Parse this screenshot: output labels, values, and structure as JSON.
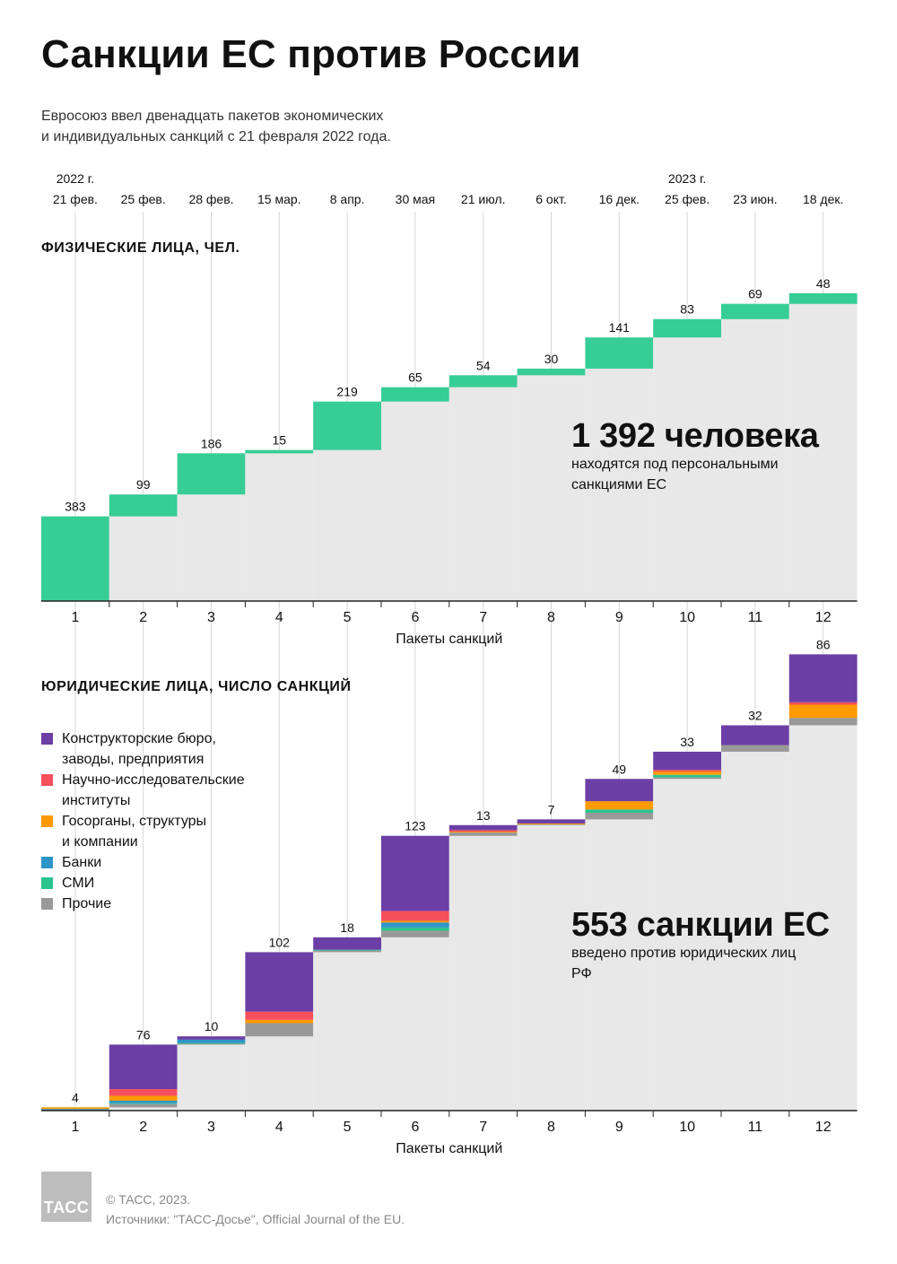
{
  "title": "Санкции ЕС против России",
  "subtitle": "Евросоюз ввел двенадцать пакетов экономических\nи индивидуальных санкций с 21 февраля 2022 года.",
  "timeline": {
    "years": [
      {
        "package": 1,
        "label": "2022 г."
      },
      {
        "package": 10,
        "label": "2023 г."
      }
    ],
    "dates": [
      "21 фев.",
      "25 фев.",
      "28 фев.",
      "15 мар.",
      "8 апр.",
      "30 мая",
      "21 июл.",
      "6 окт.",
      "16 дек.",
      "25 фев.",
      "23 июн.",
      "18 дек."
    ]
  },
  "individuals": {
    "section_title": "ФИЗИЧЕСКИЕ ЛИЦА, ЧЕЛ.",
    "big_number": "1 392 человека",
    "big_note": "находятся под персональными санкциями ЕС"
  },
  "entities": {
    "section_title": "ЮРИДИЧЕСКИЕ ЛИЦА, ЧИСЛО САНКЦИЙ",
    "big_number": "553 санкции ЕС",
    "big_note": "введено против юридических лиц РФ"
  },
  "legend": [
    {
      "label": "Конструкторские бюро,\nзаводы, предприятия",
      "color": "#6b3fa6"
    },
    {
      "label": "Научно-исследовательские\nинституты",
      "color": "#f5505b"
    },
    {
      "label": "Госорганы, структуры\nи компании",
      "color": "#ff9a00"
    },
    {
      "label": "Банки",
      "color": "#2e95c8"
    },
    {
      "label": "СМИ",
      "color": "#2cc48e"
    },
    {
      "label": "Прочие",
      "color": "#999999"
    }
  ],
  "chart_data": [
    {
      "type": "bar",
      "subtype": "waterfall",
      "title": "ФИЗИЧЕСКИЕ ЛИЦА, ЧЕЛ.",
      "xlabel": "Пакеты санкций",
      "categories": [
        "1",
        "2",
        "3",
        "4",
        "5",
        "6",
        "7",
        "8",
        "9",
        "10",
        "11",
        "12"
      ],
      "values": [
        383,
        99,
        186,
        15,
        219,
        65,
        54,
        30,
        141,
        83,
        69,
        48
      ],
      "total": 1392,
      "color": "#37cd97",
      "ylim": [
        0,
        1450
      ]
    },
    {
      "type": "bar",
      "subtype": "stacked-waterfall",
      "title": "ЮРИДИЧЕСКИЕ ЛИЦА, ЧИСЛО САНКЦИЙ",
      "xlabel": "Пакеты санкций",
      "categories": [
        "1",
        "2",
        "3",
        "4",
        "5",
        "6",
        "7",
        "8",
        "9",
        "10",
        "11",
        "12"
      ],
      "totals": [
        4,
        76,
        10,
        102,
        18,
        123,
        13,
        7,
        49,
        33,
        32,
        86
      ],
      "total": 553,
      "series": [
        {
          "name": "Прочие",
          "color": "#999999",
          "values": [
            1,
            4,
            1,
            16,
            2,
            8,
            4,
            1,
            8,
            2,
            8,
            9
          ]
        },
        {
          "name": "СМИ",
          "color": "#2cc48e",
          "values": [
            0,
            1,
            1,
            0,
            1,
            4,
            0,
            0,
            4,
            3,
            0,
            0
          ]
        },
        {
          "name": "Банки",
          "color": "#2e95c8",
          "values": [
            1,
            3,
            4,
            0,
            0,
            6,
            0,
            0,
            0,
            0,
            0,
            0
          ]
        },
        {
          "name": "Госорганы, структуры и компании",
          "color": "#ff9a00",
          "values": [
            2,
            6,
            0,
            4,
            0,
            2,
            1,
            1,
            10,
            4,
            0,
            16
          ]
        },
        {
          "name": "Научно-исследовательские институты",
          "color": "#f5505b",
          "values": [
            0,
            8,
            0,
            10,
            0,
            12,
            2,
            0,
            0,
            2,
            0,
            3
          ]
        },
        {
          "name": "Конструкторские бюро, заводы, предприятия",
          "color": "#6b3fa6",
          "values": [
            0,
            54,
            4,
            72,
            15,
            91,
            6,
            5,
            27,
            22,
            24,
            58
          ]
        }
      ],
      "ylim": [
        0,
        570
      ]
    }
  ],
  "footer": {
    "logo_text": "ТАСС",
    "copyright": "© ТАСС, 2023.",
    "sources": "Источники: \"ТАСС-Досье\", Official Journal of the EU."
  }
}
